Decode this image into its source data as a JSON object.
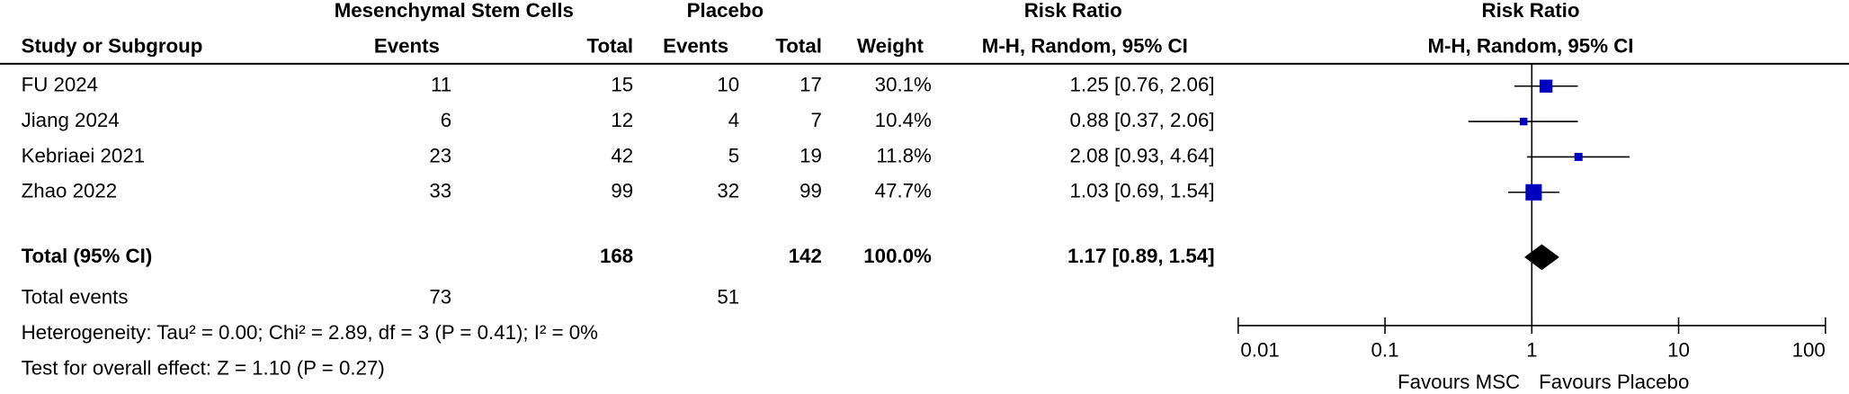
{
  "chart_data": {
    "type": "forest",
    "group_headers": [
      "Mesenchymal Stem Cells",
      "Placebo",
      "Risk Ratio",
      "Risk Ratio"
    ],
    "column_headers": [
      "Study or Subgroup",
      "Events",
      "Total",
      "Events",
      "Total",
      "Weight",
      "M-H, Random, 95% CI",
      "M-H, Random, 95% CI"
    ],
    "categories": [
      "FU 2024",
      "Jiang 2024",
      "Kebriaei 2021",
      "Zhao 2022"
    ],
    "experimental_events": [
      11,
      6,
      23,
      33
    ],
    "experimental_total": [
      15,
      12,
      42,
      99
    ],
    "control_events": [
      10,
      4,
      5,
      32
    ],
    "control_total": [
      17,
      7,
      19,
      99
    ],
    "weights": [
      30.1,
      10.4,
      11.8,
      47.7
    ],
    "weight_labels": [
      "30.1%",
      "10.4%",
      "11.8%",
      "47.7%"
    ],
    "risk_ratio": [
      1.25,
      0.88,
      2.08,
      1.03
    ],
    "ci_lower": [
      0.76,
      0.37,
      0.93,
      0.69
    ],
    "ci_upper": [
      2.06,
      2.06,
      4.64,
      1.54
    ],
    "ci_labels": [
      "1.25 [0.76, 2.06]",
      "0.88 [0.37, 2.06]",
      "2.08 [0.93, 4.64]",
      "1.03 [0.69, 1.54]"
    ],
    "total": {
      "label": "Total (95% CI)",
      "experimental_total": 168,
      "control_total": 142,
      "weight": 100.0,
      "weight_label": "100.0%",
      "risk_ratio": 1.17,
      "ci_lower": 0.89,
      "ci_upper": 1.54,
      "ci_label": "1.17 [0.89, 1.54]"
    },
    "total_events": {
      "label": "Total events",
      "experimental": 73,
      "control": 51
    },
    "heterogeneity": "Heterogeneity: Tau² = 0.00; Chi² = 2.89, df = 3 (P = 0.41); I² = 0%",
    "overall_effect": "Test for overall effect: Z = 1.10 (P = 0.27)",
    "xscale": "log",
    "xlim": [
      0.01,
      100
    ],
    "xticks": [
      0.01,
      0.1,
      1,
      10,
      100
    ],
    "xlabels": [
      "Favours MSC",
      "Favours Placebo"
    ],
    "marker_color": "#0000c0",
    "diamond_color": "#000000"
  }
}
